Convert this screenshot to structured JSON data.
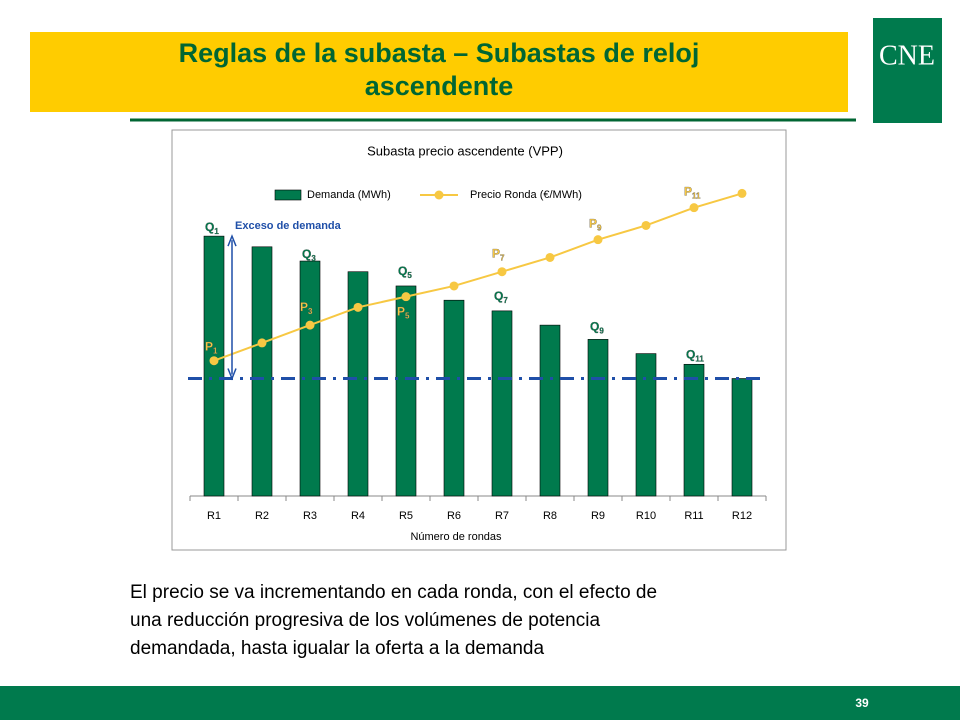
{
  "slide": {
    "title": [
      "Reglas de la subasta – Subastas de reloj",
      "ascendente"
    ],
    "logo": "CNE",
    "body": [
      "El precio se va incrementando en cada ronda, con el efecto de",
      "una reducción progresiva de los volúmenes de potencia",
      "demandada, hasta igualar la oferta a la demanda"
    ],
    "page_number": "39"
  },
  "chart_data": {
    "type": "bar",
    "title": "Subasta precio ascendente (VPP)",
    "x_label": "Número de rondas",
    "categories": [
      "R1",
      "R2",
      "R3",
      "R4",
      "R5",
      "R6",
      "R7",
      "R8",
      "R9",
      "R10",
      "R11",
      "R12"
    ],
    "series": [
      {
        "name": "Demanda (MWh)",
        "color": "#007a4d",
        "type": "bar",
        "values": [
          73,
          70,
          66,
          63,
          59,
          55,
          52,
          48,
          44,
          40,
          37,
          33
        ]
      },
      {
        "name": "Precio Ronda (€/MWh)",
        "color": "#f7c843",
        "type": "line",
        "values": [
          38,
          43,
          48,
          53,
          56,
          59,
          63,
          67,
          72,
          76,
          81,
          85
        ]
      }
    ],
    "ylim": [
      0,
      100
    ],
    "reference_line": 33,
    "reference_color": "#1f4fa8",
    "annotation": "Exceso de demanda",
    "bar_labels": [
      {
        "text": "Q",
        "sub": "1"
      },
      {
        "text": "Q",
        "sub": "3"
      },
      {
        "text": "Q",
        "sub": "5"
      },
      {
        "text": "Q",
        "sub": "7"
      },
      {
        "text": "Q",
        "sub": "9"
      },
      {
        "text": "Q",
        "sub": "11"
      }
    ],
    "line_labels": [
      {
        "text": "P",
        "sub": "1"
      },
      {
        "text": "P",
        "sub": "3"
      },
      {
        "text": "P",
        "sub": "5"
      },
      {
        "text": "P",
        "sub": "7"
      },
      {
        "text": "P",
        "sub": "9"
      },
      {
        "text": "P",
        "sub": "11"
      }
    ],
    "legend": "top"
  }
}
